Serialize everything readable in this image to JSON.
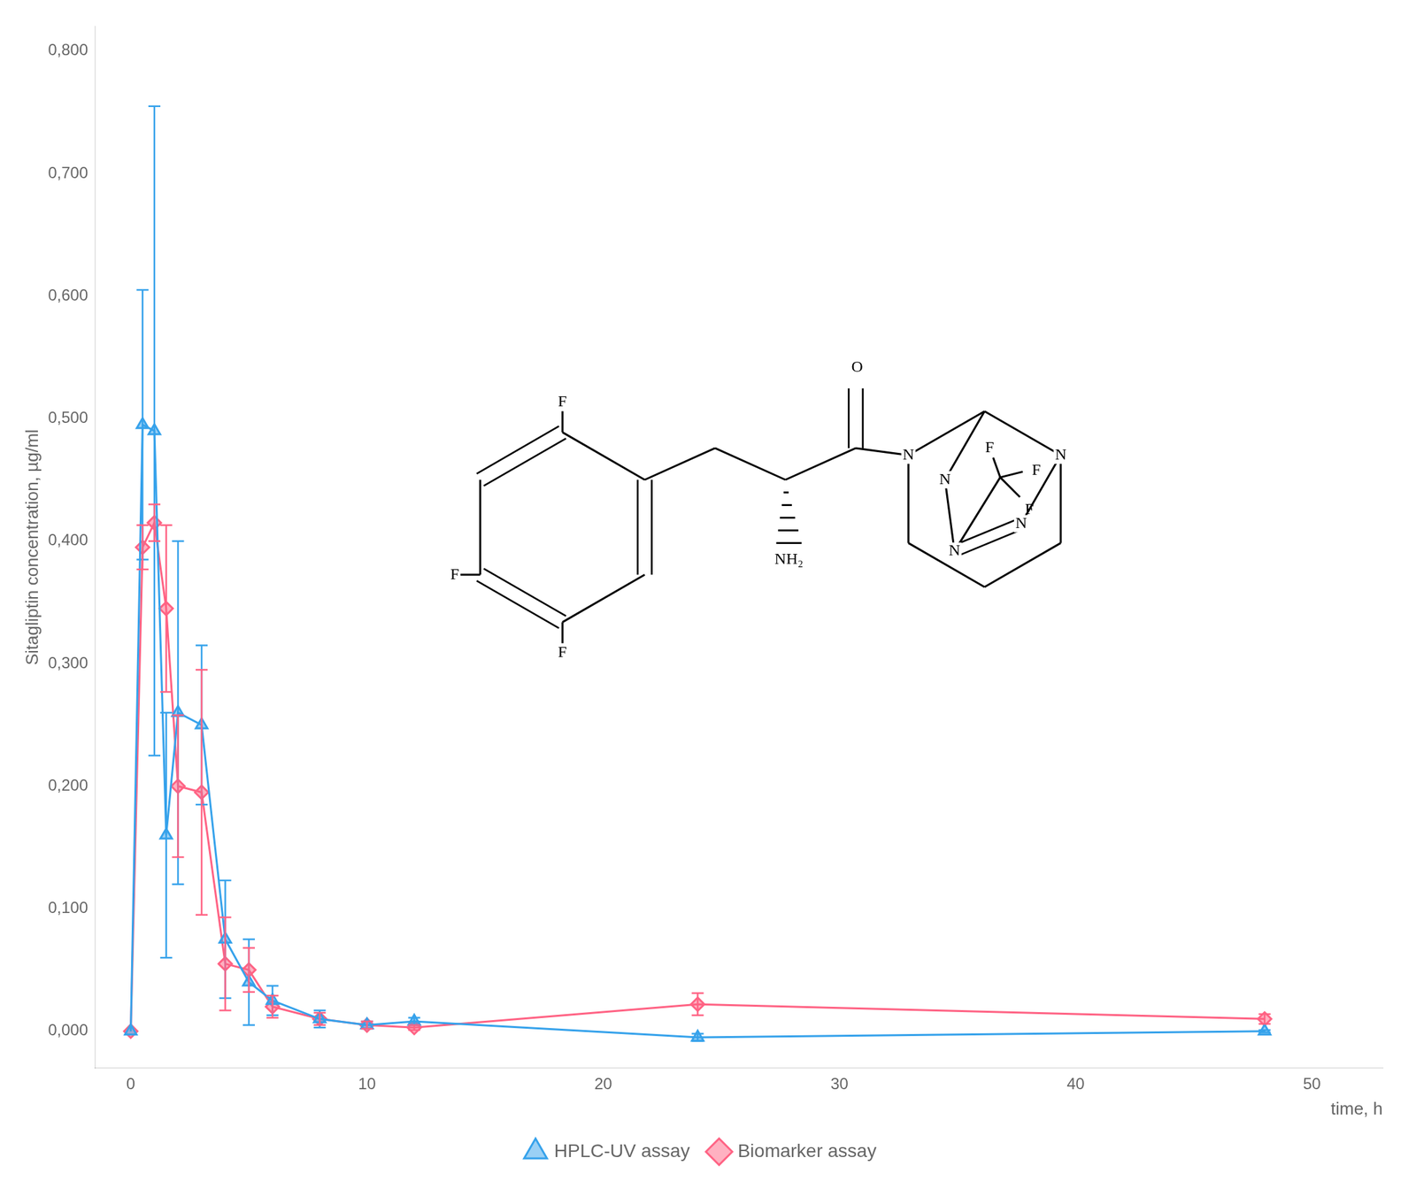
{
  "chart_data": {
    "type": "line",
    "xlabel": "time, h",
    "ylabel": "Sitagliptin concentration, µg/ml",
    "x": [
      0,
      0.5,
      1.0,
      1.5,
      2.0,
      3.0,
      4.0,
      5.0,
      6.0,
      8.0,
      10.0,
      12.0,
      24.0,
      48.0
    ],
    "series": [
      {
        "name": "HPLC-UV assay",
        "marker": "triangle",
        "values": [
          0.0,
          0.495,
          0.49,
          0.16,
          0.26,
          0.25,
          0.075,
          0.04,
          0.025,
          0.01,
          0.005,
          0.008,
          -0.005,
          0.0
        ],
        "errors": [
          0.0,
          0.11,
          0.265,
          0.1,
          0.14,
          0.065,
          0.048,
          0.035,
          0.012,
          0.007,
          0.003,
          0.003,
          0.003,
          0.001
        ]
      },
      {
        "name": "Biomarker assay",
        "marker": "diamond",
        "values": [
          0.0,
          0.395,
          0.415,
          0.345,
          0.2,
          0.195,
          0.055,
          0.05,
          0.02,
          0.01,
          0.005,
          0.003,
          0.022,
          0.01
        ],
        "errors": [
          0.0,
          0.018,
          0.015,
          0.068,
          0.058,
          0.1,
          0.038,
          0.018,
          0.009,
          0.005,
          0.003,
          0.002,
          0.009,
          0.004
        ]
      }
    ],
    "xlim": [
      -1.5,
      53
    ],
    "xticks": [
      0,
      10,
      20,
      30,
      40,
      50
    ],
    "ylim": [
      -0.03,
      0.82
    ],
    "yticks": [
      {
        "value": 0.0,
        "label": "0,000"
      },
      {
        "value": 0.1,
        "label": "0,100"
      },
      {
        "value": 0.2,
        "label": "0,200"
      },
      {
        "value": 0.3,
        "label": "0,300"
      },
      {
        "value": 0.4,
        "label": "0,400"
      },
      {
        "value": 0.5,
        "label": "0,500"
      },
      {
        "value": 0.6,
        "label": "0,600"
      },
      {
        "value": 0.7,
        "label": "0,700"
      },
      {
        "value": 0.8,
        "label": "0,800"
      }
    ],
    "grid": false,
    "legend": "bottom",
    "annotations": [
      "F",
      "F",
      "F",
      "NH₂",
      "O",
      "N",
      "N",
      "N",
      "N",
      "N",
      "F",
      "F",
      "F"
    ]
  }
}
